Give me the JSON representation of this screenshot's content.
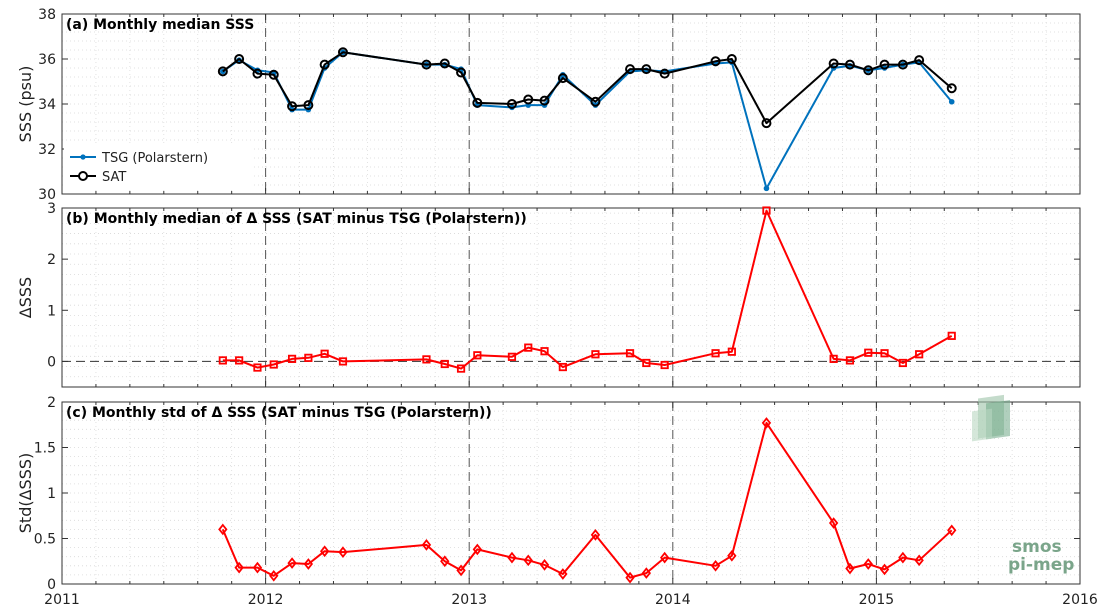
{
  "chart_data": [
    {
      "type": "line",
      "title": "(a) Monthly median SSS",
      "ylabel": "SSS (psu)",
      "ylim": [
        30,
        38
      ],
      "yticks": [
        30,
        32,
        34,
        36,
        38
      ],
      "legend_position": "bottom-left",
      "series": [
        {
          "name": "TSG (Polarstern)",
          "color": "#0072BD",
          "marker": "dot",
          "x": [
            2011.79,
            2011.87,
            2011.96,
            2012.04,
            2012.13,
            2012.21,
            2012.29,
            2012.38,
            2012.79,
            2012.88,
            2012.96,
            2013.04,
            2013.21,
            2013.29,
            2013.37,
            2013.46,
            2013.62,
            2013.79,
            2013.87,
            2013.96,
            2014.21,
            2014.29,
            2014.46,
            2014.79,
            2014.87,
            2014.96,
            2015.04,
            2015.13,
            2015.21,
            2015.37
          ],
          "y": [
            35.45,
            35.95,
            35.5,
            35.4,
            33.75,
            33.75,
            35.6,
            36.3,
            35.75,
            35.75,
            35.55,
            33.95,
            33.85,
            33.95,
            33.95,
            35.3,
            33.95,
            35.45,
            35.5,
            35.45,
            35.8,
            35.85,
            30.25,
            35.6,
            35.7,
            35.5,
            35.6,
            35.75,
            35.85,
            34.1
          ]
        },
        {
          "name": "SAT",
          "color": "#000000",
          "marker": "circle",
          "x": [
            2011.79,
            2011.87,
            2011.96,
            2012.04,
            2012.13,
            2012.21,
            2012.29,
            2012.38,
            2012.79,
            2012.88,
            2012.96,
            2013.04,
            2013.21,
            2013.29,
            2013.37,
            2013.46,
            2013.62,
            2013.79,
            2013.87,
            2013.96,
            2014.21,
            2014.29,
            2014.46,
            2014.79,
            2014.87,
            2014.96,
            2015.04,
            2015.13,
            2015.21,
            2015.37
          ],
          "y": [
            35.45,
            36.0,
            35.35,
            35.3,
            33.9,
            33.95,
            35.75,
            36.3,
            35.75,
            35.8,
            35.4,
            34.05,
            34.0,
            34.2,
            34.15,
            35.15,
            34.1,
            35.55,
            35.55,
            35.35,
            35.9,
            36.0,
            33.15,
            35.8,
            35.75,
            35.5,
            35.75,
            35.75,
            35.95,
            34.7
          ]
        }
      ]
    },
    {
      "type": "line",
      "title": "(b) Monthly median of Δ SSS (SAT minus TSG (Polarstern))",
      "ylabel": "ΔSSS",
      "ylim": [
        -0.5,
        3
      ],
      "yticks": [
        0,
        1,
        2,
        3
      ],
      "reference_line_y": 0,
      "series": [
        {
          "color": "#FF0000",
          "marker": "square",
          "x": [
            2011.79,
            2011.87,
            2011.96,
            2012.04,
            2012.13,
            2012.21,
            2012.29,
            2012.38,
            2012.79,
            2012.88,
            2012.96,
            2013.04,
            2013.21,
            2013.29,
            2013.37,
            2013.46,
            2013.62,
            2013.79,
            2013.87,
            2013.96,
            2014.21,
            2014.29,
            2014.46,
            2014.79,
            2014.87,
            2014.96,
            2015.04,
            2015.13,
            2015.21,
            2015.37
          ],
          "y": [
            0.02,
            0.02,
            -0.12,
            -0.06,
            0.05,
            0.07,
            0.15,
            0.0,
            0.04,
            -0.05,
            -0.14,
            0.12,
            0.09,
            0.27,
            0.2,
            -0.11,
            0.14,
            0.16,
            -0.03,
            -0.07,
            0.16,
            0.19,
            2.95,
            0.05,
            0.02,
            0.17,
            0.16,
            -0.03,
            0.14,
            0.5
          ]
        }
      ]
    },
    {
      "type": "line",
      "title": "(c) Monthly std of Δ SSS (SAT minus TSG (Polarstern))",
      "ylabel": "Std(ΔSSS)",
      "ylim": [
        0,
        2
      ],
      "yticks": [
        0,
        0.5,
        1,
        1.5,
        2
      ],
      "xlim": [
        2011,
        2016
      ],
      "xticks": [
        2011,
        2012,
        2013,
        2014,
        2015,
        2016
      ],
      "series": [
        {
          "color": "#FF0000",
          "marker": "diamond",
          "x": [
            2011.79,
            2011.87,
            2011.96,
            2012.04,
            2012.13,
            2012.21,
            2012.29,
            2012.38,
            2012.79,
            2012.88,
            2012.96,
            2013.04,
            2013.21,
            2013.29,
            2013.37,
            2013.46,
            2013.62,
            2013.79,
            2013.87,
            2013.96,
            2014.21,
            2014.29,
            2014.46,
            2014.79,
            2014.87,
            2014.96,
            2015.04,
            2015.13,
            2015.21,
            2015.37
          ],
          "y": [
            0.6,
            0.18,
            0.18,
            0.09,
            0.23,
            0.22,
            0.36,
            0.35,
            0.43,
            0.25,
            0.15,
            0.38,
            0.29,
            0.26,
            0.21,
            0.11,
            0.54,
            0.07,
            0.12,
            0.29,
            0.2,
            0.31,
            1.77,
            0.67,
            0.17,
            0.22,
            0.16,
            0.29,
            0.26,
            0.59
          ]
        }
      ]
    }
  ],
  "xaxis": {
    "xlim": [
      2011,
      2016
    ],
    "xticks": [
      2011,
      2012,
      2013,
      2014,
      2015,
      2016
    ],
    "tick_labels": [
      "2011",
      "2012",
      "2013",
      "2014",
      "2015",
      "2016"
    ],
    "year_dividers": [
      2012,
      2013,
      2014,
      2015
    ]
  },
  "watermark": {
    "line1": "smos",
    "line2": "pi-mep"
  }
}
